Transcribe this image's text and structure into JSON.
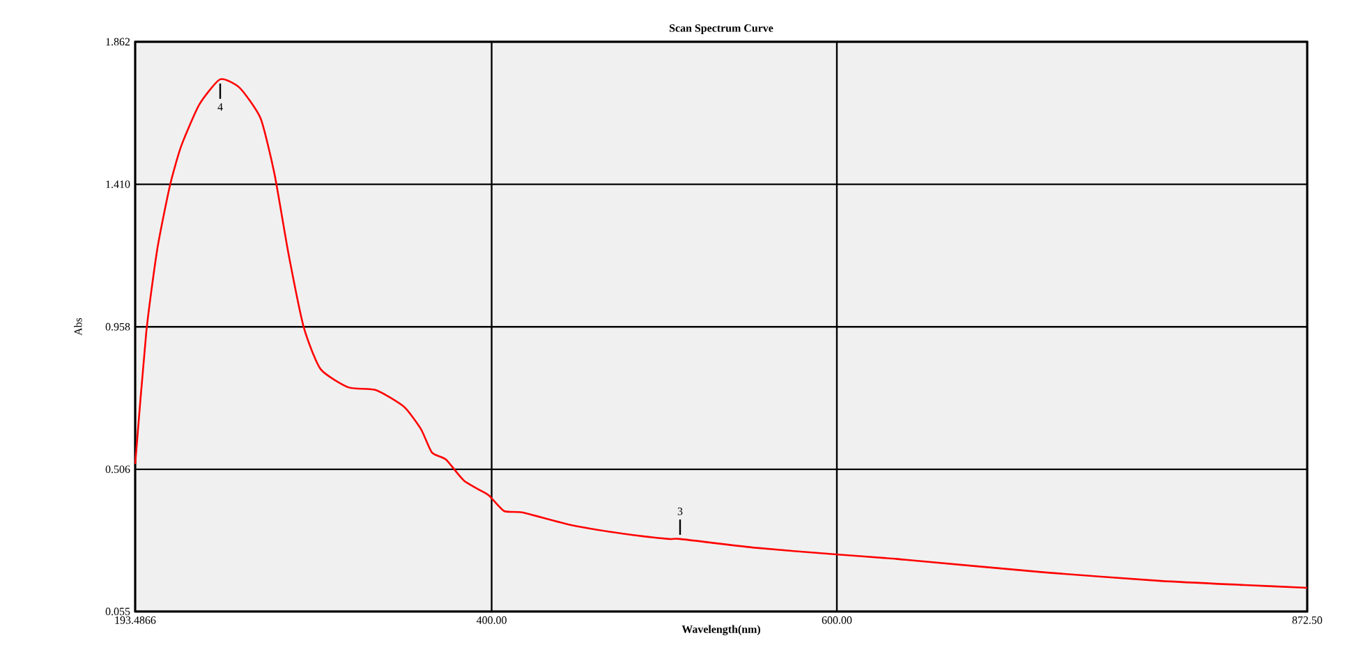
{
  "chart_data": {
    "type": "line",
    "title": "Scan Spectrum Curve",
    "xlabel": "Wavelength(nm)",
    "ylabel": "Abs",
    "x": [
      193.49,
      199.95,
      206.4,
      213.67,
      220.13,
      230.63,
      242.74,
      254.04,
      266.15,
      274.22,
      282.3,
      291.18,
      300.87,
      317.02,
      333.16,
      349.31,
      359.0,
      365.46,
      373.53,
      384.03,
      397.75,
      400.18,
      407.44,
      417.94,
      446.2,
      476.07,
      502.71,
      509.17,
      551.16,
      599.6,
      631.9,
      639.97,
      720.71,
      787.72,
      836.16,
      872.5
    ],
    "values": [
      0.523,
      0.943,
      1.208,
      1.407,
      1.531,
      1.663,
      1.743,
      1.716,
      1.619,
      1.442,
      1.19,
      0.956,
      0.824,
      0.766,
      0.757,
      0.704,
      0.634,
      0.559,
      0.537,
      0.47,
      0.426,
      0.413,
      0.373,
      0.369,
      0.329,
      0.302,
      0.285,
      0.285,
      0.258,
      0.236,
      0.223,
      0.219,
      0.179,
      0.152,
      0.139,
      0.13
    ],
    "color": "#ff0000",
    "xlim": [
      193.4866,
      872.5
    ],
    "xticks": [
      {
        "value": 193.4866,
        "label": "193.4866"
      },
      {
        "value": 400,
        "label": "400.00"
      },
      {
        "value": 600,
        "label": "600.00"
      },
      {
        "value": 872.5,
        "label": "872.50"
      }
    ],
    "ylim": [
      0.055,
      1.862
    ],
    "yticks": [
      {
        "value": 0.055,
        "label": "0.055"
      },
      {
        "value": 0.506,
        "label": "0.506"
      },
      {
        "value": 0.958,
        "label": "0.958"
      },
      {
        "value": 1.41,
        "label": "1.410"
      },
      {
        "value": 1.862,
        "label": "1.862"
      }
    ],
    "grid": true,
    "annotations": [
      {
        "text": "4",
        "x": 242.74,
        "y": 1.743
      },
      {
        "text": "3",
        "x": 509.17,
        "y": 0.285
      }
    ]
  }
}
